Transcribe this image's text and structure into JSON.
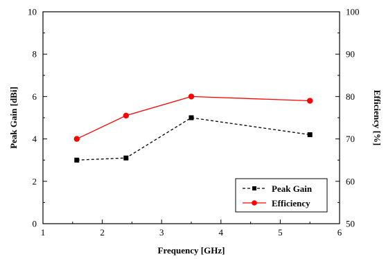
{
  "chart_data": {
    "type": "line",
    "xlabel": "Frequency [GHz]",
    "ylabel_left": "Peak Gain [dBi]",
    "ylabel_right": "Efficiency [%]",
    "xlim": [
      1,
      6
    ],
    "ylim_left": [
      0,
      10
    ],
    "ylim_right": [
      50,
      100
    ],
    "x_ticks": [
      1,
      2,
      3,
      4,
      5,
      6
    ],
    "y_left_ticks": [
      0,
      2,
      4,
      6,
      8,
      10
    ],
    "y_right_ticks": [
      50,
      60,
      70,
      80,
      90,
      100
    ],
    "grid": false,
    "legend_position": "bottom-right",
    "series": [
      {
        "name": "Peak Gain",
        "axis": "left",
        "color": "#000000",
        "line_style": "dashed",
        "marker": "square",
        "x": [
          1.57,
          2.4,
          3.5,
          5.5
        ],
        "y": [
          3.0,
          3.1,
          5.0,
          4.2
        ]
      },
      {
        "name": "Efficiency",
        "axis": "right",
        "color": "#ff0000",
        "line_style": "solid",
        "marker": "circle",
        "x": [
          1.57,
          2.4,
          3.5,
          5.5
        ],
        "y": [
          70,
          75.5,
          80,
          79
        ]
      }
    ]
  }
}
